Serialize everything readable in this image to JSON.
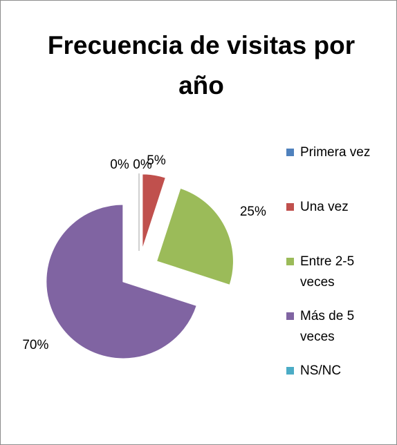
{
  "chart_data": {
    "type": "pie",
    "title": "Frecuencia de visitas por año",
    "categories": [
      "Primera vez",
      "Una vez",
      "Entre 2-5 veces",
      "Más de 5 veces",
      "NS/NC"
    ],
    "values": [
      0,
      5,
      25,
      70,
      0
    ],
    "value_labels": [
      "0%",
      "5%",
      "25%",
      "70%",
      "0%"
    ],
    "colors": [
      "#4f81bd",
      "#c0504d",
      "#9bbb59",
      "#8064a2",
      "#4bacc6"
    ],
    "legend": "right"
  }
}
